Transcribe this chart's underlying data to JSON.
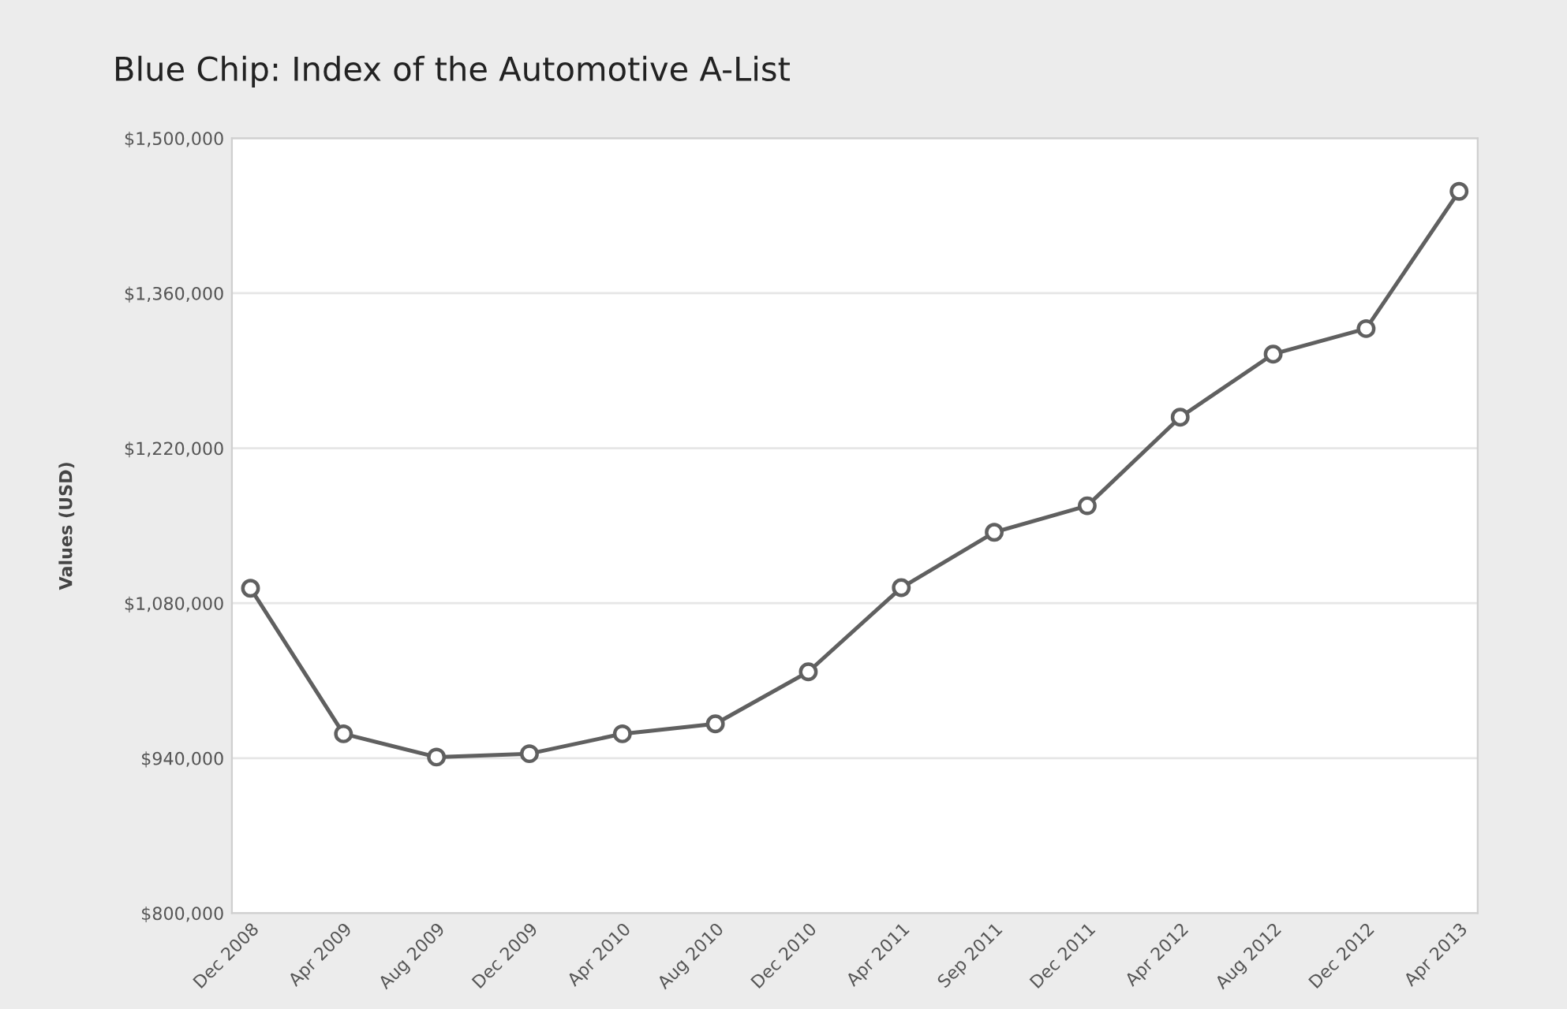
{
  "chart_data": {
    "type": "line",
    "title": "Blue Chip: Index of the Automotive A-List",
    "ylabel": "Values (USD)",
    "categories": [
      "Dec 2008",
      "Apr 2009",
      "Aug 2009",
      "Dec 2009",
      "Apr 2010",
      "Aug 2010",
      "Dec 2010",
      "Apr 2011",
      "Sep 2011",
      "Dec 2011",
      "Apr 2012",
      "Aug 2012",
      "Dec 2012",
      "Apr 2013"
    ],
    "series": [
      {
        "color": "#606060",
        "values": [
          1093500,
          962000,
          941000,
          944000,
          962000,
          971000,
          1018000,
          1094000,
          1144000,
          1168000,
          1248000,
          1305000,
          1328000,
          1452000
        ]
      }
    ],
    "ylim": [
      800000,
      1500000
    ],
    "yticks": [
      {
        "value": 800000,
        "label": "$800,000"
      },
      {
        "value": 940000,
        "label": "$940,000"
      },
      {
        "value": 1080000,
        "label": "$1,080,000"
      },
      {
        "value": 1220000,
        "label": "$1,220,000"
      },
      {
        "value": 1360000,
        "label": "$1,360,000"
      },
      {
        "value": 1500000,
        "label": "$1,500,000"
      }
    ],
    "grid": "y",
    "marker": "circle",
    "line_style": "solid",
    "legend": false
  }
}
